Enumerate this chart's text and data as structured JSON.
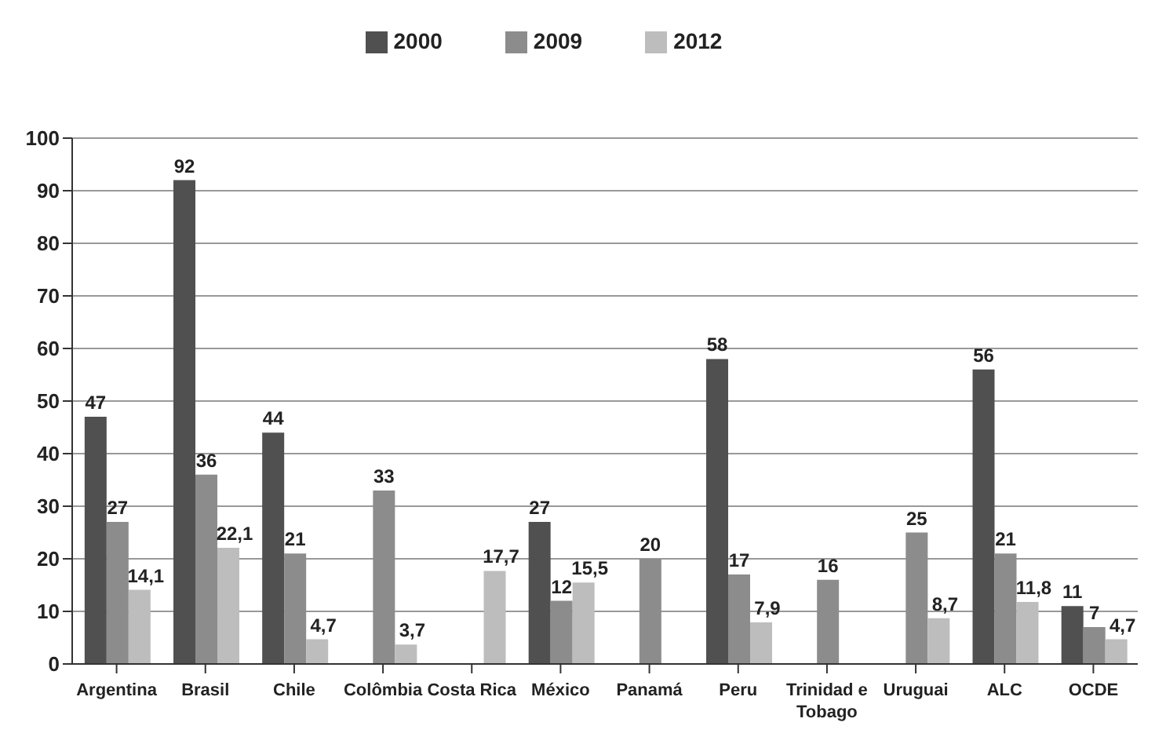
{
  "chart_data": {
    "type": "bar",
    "categories": [
      "Argentina",
      "Brasil",
      "Chile",
      "Colômbia",
      "Costa Rica",
      "México",
      "Panamá",
      "Peru",
      "Trinidad e Tobago",
      "Uruguai",
      "ALC",
      "OCDE"
    ],
    "series": [
      {
        "name": "2000",
        "color": "#505050",
        "values": [
          47,
          92,
          44,
          null,
          null,
          27,
          null,
          58,
          null,
          null,
          56,
          11
        ],
        "value_labels": [
          "47",
          "92",
          "44",
          null,
          null,
          "27",
          null,
          "58",
          null,
          null,
          "56",
          "11"
        ]
      },
      {
        "name": "2009",
        "color": "#8c8c8c",
        "values": [
          27,
          36,
          21,
          33,
          null,
          12,
          20,
          17,
          16,
          25,
          21,
          7
        ],
        "value_labels": [
          "27",
          "36",
          "21",
          "33",
          null,
          "12",
          "20",
          "17",
          "16",
          "25",
          "21",
          "7"
        ]
      },
      {
        "name": "2012",
        "color": "#bdbdbd",
        "values": [
          14.1,
          22.1,
          4.7,
          3.7,
          17.7,
          15.5,
          null,
          7.9,
          null,
          8.7,
          11.8,
          4.7
        ],
        "value_labels": [
          "14,1",
          "22,1",
          "4,7",
          "3,7",
          "17,7",
          "15,5",
          null,
          "7,9",
          null,
          "8,7",
          "11,8",
          "4,7"
        ]
      }
    ],
    "ylim": [
      0,
      100
    ],
    "yticks": [
      0,
      10,
      20,
      30,
      40,
      50,
      60,
      70,
      80,
      90,
      100
    ],
    "grid": "y",
    "legend": "top"
  }
}
